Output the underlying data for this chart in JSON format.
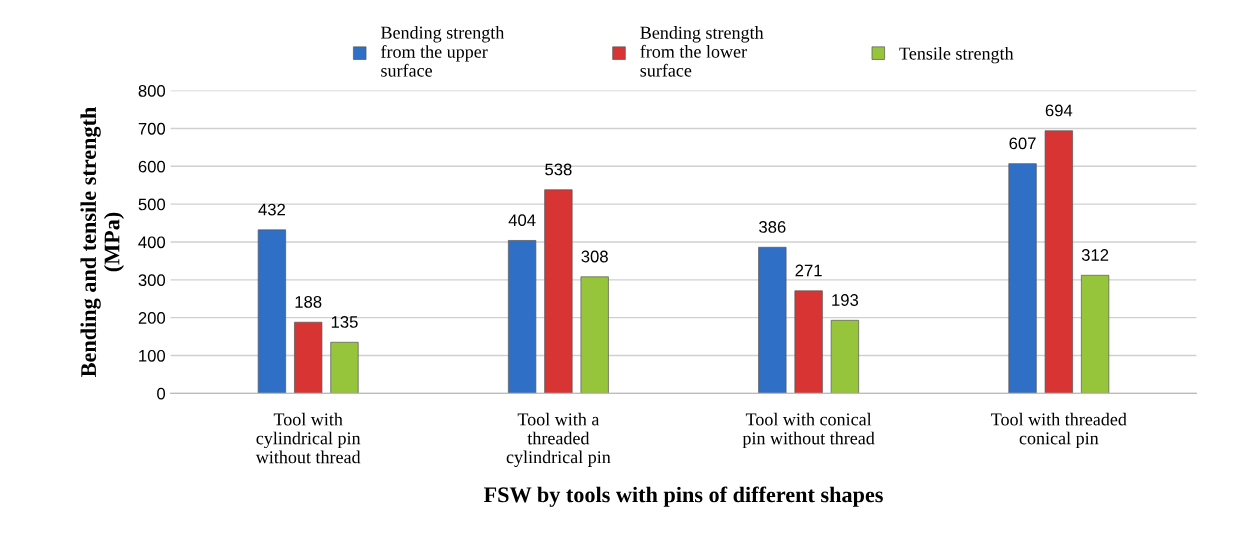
{
  "chart_data": {
    "type": "bar",
    "xlabel": "FSW by tools with pins of different shapes",
    "ylabel": "Bending and tensile strength\n(MPa)",
    "categories": [
      "Tool with\ncylindrical pin\nwithout thread",
      "Tool with a\nthreaded\ncylindrical pin",
      "Tool with conical\npin without thread",
      "Tool with threaded\nconical pin"
    ],
    "series": [
      {
        "name": "Bending strength\nfrom the upper\nsurface",
        "color": "#2f6fc6",
        "values": [
          432,
          404,
          386,
          607
        ]
      },
      {
        "name": "Bending strength\nfrom the lower\nsurface",
        "color": "#d83434",
        "values": [
          188,
          538,
          271,
          694
        ]
      },
      {
        "name": "Tensile strength",
        "color": "#96c43a",
        "values": [
          135,
          308,
          193,
          312
        ]
      }
    ],
    "ylim": [
      0,
      800
    ],
    "yticks": [
      0,
      100,
      200,
      300,
      400,
      500,
      600,
      700,
      800
    ],
    "grid": "y",
    "legend": "top",
    "data_labels": true
  }
}
